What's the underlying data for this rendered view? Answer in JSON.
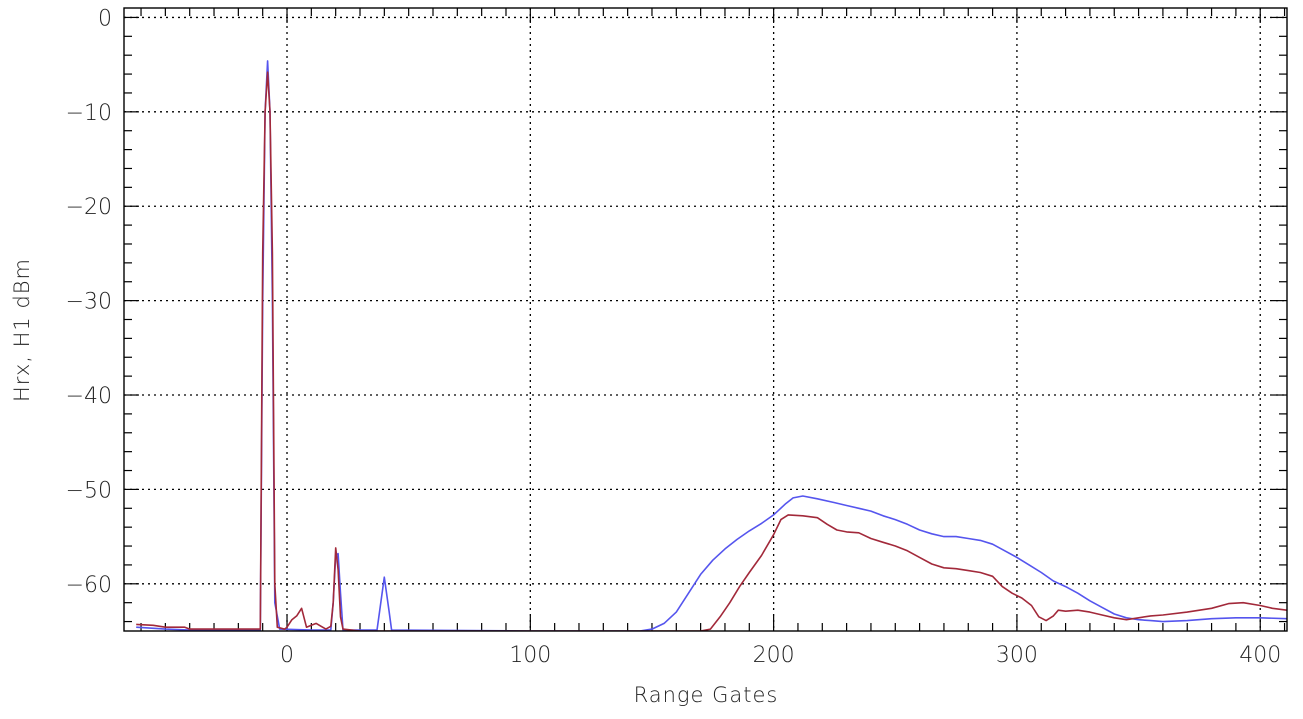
{
  "chart_data": {
    "type": "line",
    "title": "",
    "xlabel": "Range Gates",
    "ylabel": "Hrx, H1 dBm",
    "xlim": [
      -67,
      411
    ],
    "ylim": [
      -65,
      1
    ],
    "x_ticks": [
      0,
      100,
      200,
      300,
      400
    ],
    "x_tick_labels": [
      "0",
      "100",
      "200",
      "300",
      "400"
    ],
    "y_ticks": [
      0,
      -10,
      -20,
      -30,
      -40,
      -50,
      -60
    ],
    "y_tick_labels": [
      "0",
      "−10",
      "−20",
      "−30",
      "−40",
      "−50",
      "−60"
    ],
    "x_minor_step": 10,
    "y_minor_step": 2,
    "grid": true,
    "legend": false,
    "series": [
      {
        "color": "#5555ee",
        "points": [
          [
            -62,
            -64.6
          ],
          [
            -50,
            -64.8
          ],
          [
            -40,
            -64.9
          ],
          [
            -20,
            -64.9
          ],
          [
            -11,
            -64.9
          ],
          [
            -10,
            -30
          ],
          [
            -9,
            -10
          ],
          [
            -8,
            -4.6
          ],
          [
            -7,
            -10
          ],
          [
            -6,
            -30
          ],
          [
            -5,
            -62
          ],
          [
            -3,
            -64.8
          ],
          [
            10,
            -64.9
          ],
          [
            18,
            -64.9
          ],
          [
            19,
            -62
          ],
          [
            20,
            -57
          ],
          [
            21,
            -56.8
          ],
          [
            22,
            -61
          ],
          [
            23,
            -64.9
          ],
          [
            37,
            -64.9
          ],
          [
            38,
            -63
          ],
          [
            40,
            -59.3
          ],
          [
            42,
            -63
          ],
          [
            43,
            -64.9
          ],
          [
            100,
            -65
          ],
          [
            145,
            -65
          ],
          [
            150,
            -64.8
          ],
          [
            155,
            -64.2
          ],
          [
            160,
            -63
          ],
          [
            165,
            -61
          ],
          [
            170,
            -59
          ],
          [
            175,
            -57.5
          ],
          [
            180,
            -56.3
          ],
          [
            185,
            -55.3
          ],
          [
            190,
            -54.4
          ],
          [
            195,
            -53.6
          ],
          [
            200,
            -52.7
          ],
          [
            205,
            -51.5
          ],
          [
            208,
            -50.9
          ],
          [
            212,
            -50.7
          ],
          [
            218,
            -51
          ],
          [
            225,
            -51.4
          ],
          [
            230,
            -51.7
          ],
          [
            235,
            -52
          ],
          [
            240,
            -52.3
          ],
          [
            245,
            -52.8
          ],
          [
            250,
            -53.2
          ],
          [
            255,
            -53.7
          ],
          [
            260,
            -54.3
          ],
          [
            265,
            -54.7
          ],
          [
            270,
            -55
          ],
          [
            275,
            -55
          ],
          [
            280,
            -55.2
          ],
          [
            285,
            -55.4
          ],
          [
            290,
            -55.8
          ],
          [
            295,
            -56.5
          ],
          [
            300,
            -57.2
          ],
          [
            305,
            -58
          ],
          [
            310,
            -58.8
          ],
          [
            315,
            -59.7
          ],
          [
            320,
            -60.3
          ],
          [
            325,
            -61
          ],
          [
            330,
            -61.8
          ],
          [
            335,
            -62.5
          ],
          [
            340,
            -63.2
          ],
          [
            345,
            -63.6
          ],
          [
            350,
            -63.8
          ],
          [
            355,
            -63.9
          ],
          [
            360,
            -64
          ],
          [
            370,
            -63.9
          ],
          [
            380,
            -63.7
          ],
          [
            390,
            -63.6
          ],
          [
            400,
            -63.6
          ],
          [
            411,
            -63.7
          ]
        ]
      },
      {
        "color": "#a2293a",
        "points": [
          [
            -62,
            -64.3
          ],
          [
            -55,
            -64.4
          ],
          [
            -50,
            -64.6
          ],
          [
            -42,
            -64.6
          ],
          [
            -40,
            -64.8
          ],
          [
            -30,
            -64.8
          ],
          [
            -20,
            -64.8
          ],
          [
            -11,
            -64.8
          ],
          [
            -10,
            -25
          ],
          [
            -9,
            -10
          ],
          [
            -8,
            -5.8
          ],
          [
            -7,
            -10
          ],
          [
            -6,
            -25
          ],
          [
            -5,
            -60
          ],
          [
            -4,
            -64.6
          ],
          [
            -1,
            -64.8
          ],
          [
            0,
            -64.6
          ],
          [
            2,
            -63.8
          ],
          [
            4,
            -63.4
          ],
          [
            6,
            -62.6
          ],
          [
            8,
            -64.6
          ],
          [
            10,
            -64.4
          ],
          [
            12,
            -64.2
          ],
          [
            14,
            -64.5
          ],
          [
            16,
            -64.8
          ],
          [
            18,
            -64.5
          ],
          [
            19,
            -62
          ],
          [
            20,
            -56.2
          ],
          [
            21,
            -58.5
          ],
          [
            22,
            -63.5
          ],
          [
            23,
            -64.8
          ],
          [
            30,
            -65
          ],
          [
            100,
            -65
          ],
          [
            170,
            -65
          ],
          [
            174,
            -64.8
          ],
          [
            178,
            -63.5
          ],
          [
            182,
            -62
          ],
          [
            186,
            -60.3
          ],
          [
            190,
            -58.8
          ],
          [
            195,
            -57
          ],
          [
            200,
            -54.8
          ],
          [
            203,
            -53.2
          ],
          [
            206,
            -52.7
          ],
          [
            212,
            -52.8
          ],
          [
            218,
            -53
          ],
          [
            222,
            -53.7
          ],
          [
            226,
            -54.3
          ],
          [
            230,
            -54.5
          ],
          [
            235,
            -54.6
          ],
          [
            240,
            -55.2
          ],
          [
            245,
            -55.6
          ],
          [
            250,
            -56
          ],
          [
            255,
            -56.5
          ],
          [
            260,
            -57.2
          ],
          [
            265,
            -57.9
          ],
          [
            270,
            -58.3
          ],
          [
            275,
            -58.4
          ],
          [
            280,
            -58.6
          ],
          [
            285,
            -58.8
          ],
          [
            290,
            -59.2
          ],
          [
            294,
            -60.3
          ],
          [
            298,
            -61
          ],
          [
            302,
            -61.5
          ],
          [
            306,
            -62.3
          ],
          [
            309,
            -63.5
          ],
          [
            312,
            -63.9
          ],
          [
            315,
            -63.4
          ],
          [
            317,
            -62.8
          ],
          [
            320,
            -62.9
          ],
          [
            325,
            -62.8
          ],
          [
            330,
            -63
          ],
          [
            335,
            -63.3
          ],
          [
            340,
            -63.6
          ],
          [
            345,
            -63.8
          ],
          [
            350,
            -63.6
          ],
          [
            355,
            -63.4
          ],
          [
            360,
            -63.3
          ],
          [
            370,
            -63
          ],
          [
            380,
            -62.6
          ],
          [
            387,
            -62.1
          ],
          [
            393,
            -62
          ],
          [
            400,
            -62.3
          ],
          [
            405,
            -62.6
          ],
          [
            411,
            -62.8
          ]
        ]
      }
    ]
  }
}
